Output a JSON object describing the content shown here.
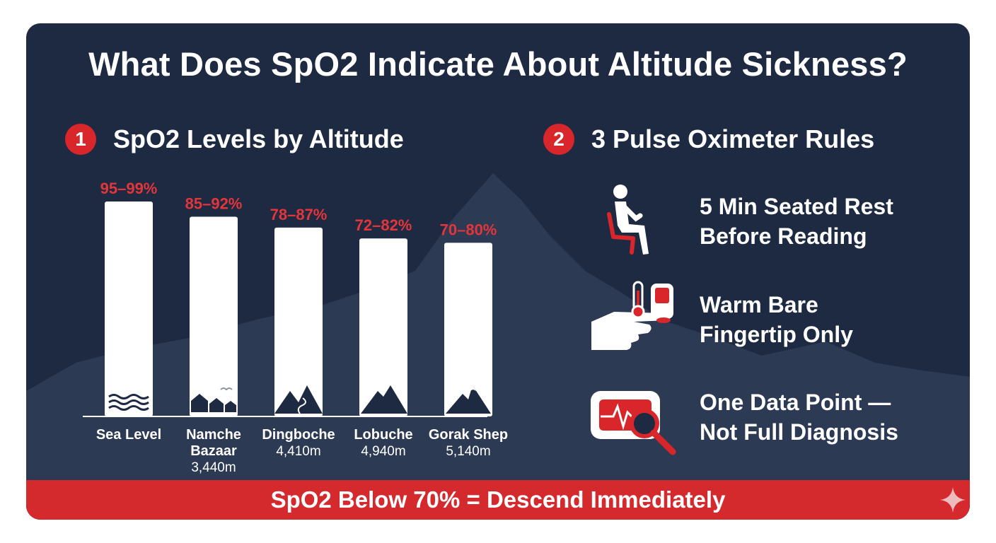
{
  "title": "What Does SpO2 Indicate About Altitude Sickness?",
  "section1": {
    "number": "1",
    "title": "SpO2 Levels by Altitude"
  },
  "section2": {
    "number": "2",
    "title": "3 Pulse Oximeter Rules"
  },
  "chart_data": {
    "type": "bar",
    "title": "SpO2 Levels by Altitude",
    "categories": [
      {
        "name_lines": [
          "Sea Level"
        ],
        "altitude": "",
        "range_label": "95–99%",
        "icon": "waves-icon",
        "low": 95,
        "high": 99
      },
      {
        "name_lines": [
          "Namche",
          "Bazaar"
        ],
        "altitude": "3,440m",
        "range_label": "85–92%",
        "icon": "village-icon",
        "low": 85,
        "high": 92
      },
      {
        "name_lines": [
          "Dingboche"
        ],
        "altitude": "4,410m",
        "range_label": "78–87%",
        "icon": "mountain-path-icon",
        "low": 78,
        "high": 87
      },
      {
        "name_lines": [
          "Lobuche"
        ],
        "altitude": "4,940m",
        "range_label": "72–82%",
        "icon": "mountain-icon",
        "low": 72,
        "high": 82
      },
      {
        "name_lines": [
          "Gorak Shep"
        ],
        "altitude": "5,140m",
        "range_label": "70–80%",
        "icon": "snow-peak-icon",
        "low": 70,
        "high": 80
      }
    ],
    "bar_value": "high",
    "ylim": [
      0,
      100
    ],
    "grid": false,
    "legend": "none",
    "colors": {
      "bar": "#ffffff",
      "label": "#e3353a",
      "icon": "#1d2a42"
    }
  },
  "rules": [
    {
      "icon": "seated-person-icon",
      "lines": [
        "5 Min Seated Rest",
        "Before Reading"
      ]
    },
    {
      "icon": "warm-fingertip-icon",
      "lines": [
        "Warm Bare",
        "Fingertip Only"
      ]
    },
    {
      "icon": "monitor-magnifier-icon",
      "lines": [
        "One Data Point —",
        "Not Full Diagnosis"
      ]
    }
  ],
  "banner": "SpO2 Below 70% = Descend Immediately",
  "colors": {
    "background": "#1d2a42",
    "mountain": "#2c3a54",
    "accent": "#d9262b",
    "text": "#ffffff"
  }
}
